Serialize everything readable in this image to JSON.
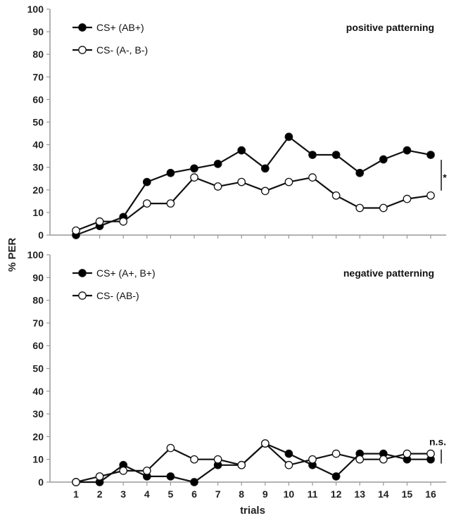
{
  "chart_data": [
    {
      "type": "line",
      "panel_title": "positive patterning",
      "x": [
        1,
        2,
        3,
        4,
        5,
        6,
        7,
        8,
        9,
        10,
        11,
        12,
        13,
        14,
        15,
        16
      ],
      "ylim": [
        0,
        100
      ],
      "yticks": [
        0,
        10,
        20,
        30,
        40,
        50,
        60,
        70,
        80,
        90,
        100
      ],
      "series": [
        {
          "name": "CS+ (AB+)",
          "marker": "filled",
          "values": [
            0,
            4,
            8,
            23.5,
            27.5,
            29.5,
            31.5,
            37.5,
            29.5,
            43.5,
            35.5,
            35.5,
            27.5,
            33.5,
            37.5,
            35.5
          ]
        },
        {
          "name": "CS- (A-, B-)",
          "marker": "open",
          "values": [
            2,
            6,
            6,
            14,
            14,
            25.5,
            21.5,
            23.5,
            19.5,
            23.5,
            25.5,
            17.5,
            12,
            12,
            16,
            17.5
          ]
        }
      ],
      "significance": "*",
      "legend_position": "top-left"
    },
    {
      "type": "line",
      "panel_title": "negative patterning",
      "x": [
        1,
        2,
        3,
        4,
        5,
        6,
        7,
        8,
        9,
        10,
        11,
        12,
        13,
        14,
        15,
        16
      ],
      "ylim": [
        0,
        100
      ],
      "yticks": [
        0,
        10,
        20,
        30,
        40,
        50,
        60,
        70,
        80,
        90,
        100
      ],
      "series": [
        {
          "name": "CS+ (A+, B+)",
          "marker": "filled",
          "values": [
            0,
            0,
            7.5,
            2.5,
            2.5,
            0,
            7.5,
            7.5,
            17,
            12.5,
            7.5,
            2.5,
            12.5,
            12.5,
            10,
            10
          ]
        },
        {
          "name": "CS- (AB-)",
          "marker": "open",
          "values": [
            0,
            2.5,
            5,
            5,
            15,
            10,
            10,
            7.5,
            17,
            7.5,
            10,
            12.5,
            10,
            10,
            12.5,
            12.5
          ]
        }
      ],
      "significance": "n.s.",
      "legend_position": "top-left"
    }
  ],
  "ylabel": "% PER",
  "xlabel": "trials",
  "colors": {
    "line": "#111111",
    "axis": "#999999",
    "open_fill": "#ffffff",
    "filled_fill": "#000000"
  }
}
